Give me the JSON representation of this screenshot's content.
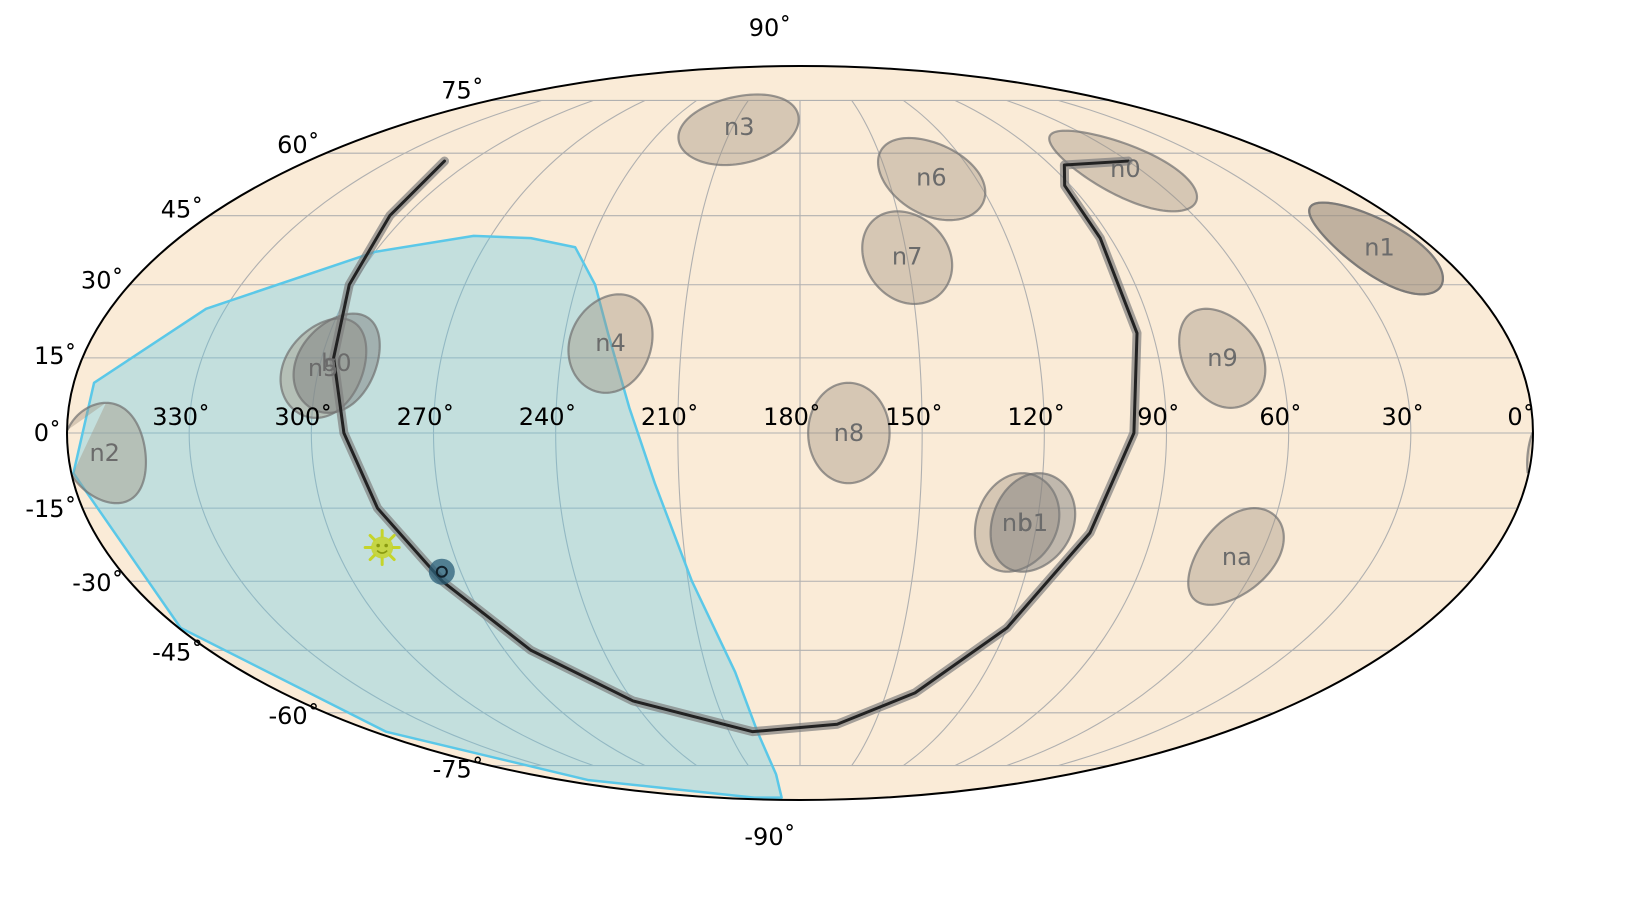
{
  "chart_data": {
    "type": "scatter",
    "projection": "mollweide",
    "background_color": "#faebd7",
    "grid": true,
    "longitude_ticks": [
      {
        "value": 330,
        "label": "330˚"
      },
      {
        "value": 300,
        "label": "300˚"
      },
      {
        "value": 270,
        "label": "270˚"
      },
      {
        "value": 240,
        "label": "240˚"
      },
      {
        "value": 210,
        "label": "210˚"
      },
      {
        "value": 180,
        "label": "180˚"
      },
      {
        "value": 150,
        "label": "150˚"
      },
      {
        "value": 120,
        "label": "120˚"
      },
      {
        "value": 90,
        "label": "90˚"
      },
      {
        "value": 60,
        "label": "60˚"
      },
      {
        "value": 30,
        "label": "30˚"
      },
      {
        "value": 0,
        "label": "0˚"
      }
    ],
    "latitude_ticks": [
      {
        "value": 90,
        "label": "90˚"
      },
      {
        "value": 75,
        "label": "75˚"
      },
      {
        "value": 60,
        "label": "60˚"
      },
      {
        "value": 45,
        "label": "45˚"
      },
      {
        "value": 30,
        "label": "30˚"
      },
      {
        "value": 15,
        "label": "15˚"
      },
      {
        "value": 0,
        "label": "0˚"
      },
      {
        "value": -15,
        "label": "-15˚"
      },
      {
        "value": -30,
        "label": "-30˚"
      },
      {
        "value": -45,
        "label": "-45˚"
      },
      {
        "value": -60,
        "label": "-60˚"
      },
      {
        "value": -75,
        "label": "-75˚"
      },
      {
        "value": -90,
        "label": "-90˚"
      }
    ],
    "detector_color": "#a09080",
    "detectors": [
      {
        "label": "n0",
        "lon": 65,
        "lat": 56,
        "radius": 10,
        "dark": false
      },
      {
        "label": "n1",
        "lon": 15,
        "lat": 38,
        "radius": 10,
        "dark": false
      },
      {
        "label": "n2",
        "lon": 351,
        "lat": -4,
        "radius": 10,
        "dark": false
      },
      {
        "label": "n3",
        "lon": 207,
        "lat": 67,
        "radius": 10,
        "dark": false
      },
      {
        "label": "n4",
        "lon": 228,
        "lat": 18,
        "radius": 10,
        "dark": false
      },
      {
        "label": "n5",
        "lon": 299,
        "lat": 13,
        "radius": 10,
        "dark": false
      },
      {
        "label": "n6",
        "lon": 135,
        "lat": 54,
        "radius": 10,
        "dark": false
      },
      {
        "label": "n7",
        "lon": 150,
        "lat": 36,
        "radius": 10,
        "dark": false
      },
      {
        "label": "n8",
        "lon": 168,
        "lat": 0,
        "radius": 10,
        "dark": false
      },
      {
        "label": "n9",
        "lon": 74,
        "lat": 15,
        "radius": 10,
        "dark": false
      },
      {
        "label": "na",
        "lon": 66,
        "lat": -25,
        "radius": 10,
        "dark": false
      },
      {
        "label": "nb",
        "lon": 125,
        "lat": -18,
        "radius": 10,
        "dark": false
      },
      {
        "label": "b0",
        "lon": 296,
        "lat": 14,
        "radius": 10,
        "dark": true
      },
      {
        "label": "b1",
        "lon": 121,
        "lat": -18,
        "radius": 10,
        "dark": true
      },
      {
        "label": "",
        "lon": 15,
        "lat": 38,
        "radius": 10,
        "dark": false,
        "wrapped_part": true
      }
    ],
    "earth_occultation": {
      "color": "#5bc8e8",
      "outline": [
        [
          258,
          40
        ],
        [
          244,
          38
        ],
        [
          235,
          30
        ],
        [
          229,
          20
        ],
        [
          222,
          5
        ],
        [
          216,
          -10
        ],
        [
          209,
          -30
        ],
        [
          201,
          -50
        ],
        [
          198,
          -65
        ],
        [
          196,
          -78
        ],
        [
          220,
          -88
        ],
        [
          280,
          -88
        ],
        [
          340,
          -80
        ],
        [
          355,
          -65
        ],
        [
          359.5,
          -40
        ],
        [
          359.5,
          -8
        ],
        [
          355,
          10
        ],
        [
          335,
          25
        ],
        [
          300,
          37
        ],
        [
          275,
          40.5
        ],
        [
          258,
          40
        ]
      ]
    },
    "orbital_path": {
      "points": [
        [
          310,
          58
        ],
        [
          305,
          45
        ],
        [
          301,
          30
        ],
        [
          297,
          15
        ],
        [
          292,
          0
        ],
        [
          286,
          -15
        ],
        [
          276,
          -30
        ],
        [
          262,
          -45
        ],
        [
          240,
          -57
        ],
        [
          200,
          -65
        ],
        [
          165,
          -63
        ],
        [
          140,
          -55
        ],
        [
          120,
          -40
        ],
        [
          106,
          -20
        ],
        [
          98,
          0
        ],
        [
          94,
          20
        ],
        [
          93,
          40
        ],
        [
          92,
          52
        ],
        [
          85,
          57
        ],
        [
          60,
          58
        ]
      ]
    },
    "spacecraft_position": {
      "lon": 275,
      "lat": -28
    },
    "sun_position": {
      "lon": 288,
      "lat": -23
    }
  }
}
